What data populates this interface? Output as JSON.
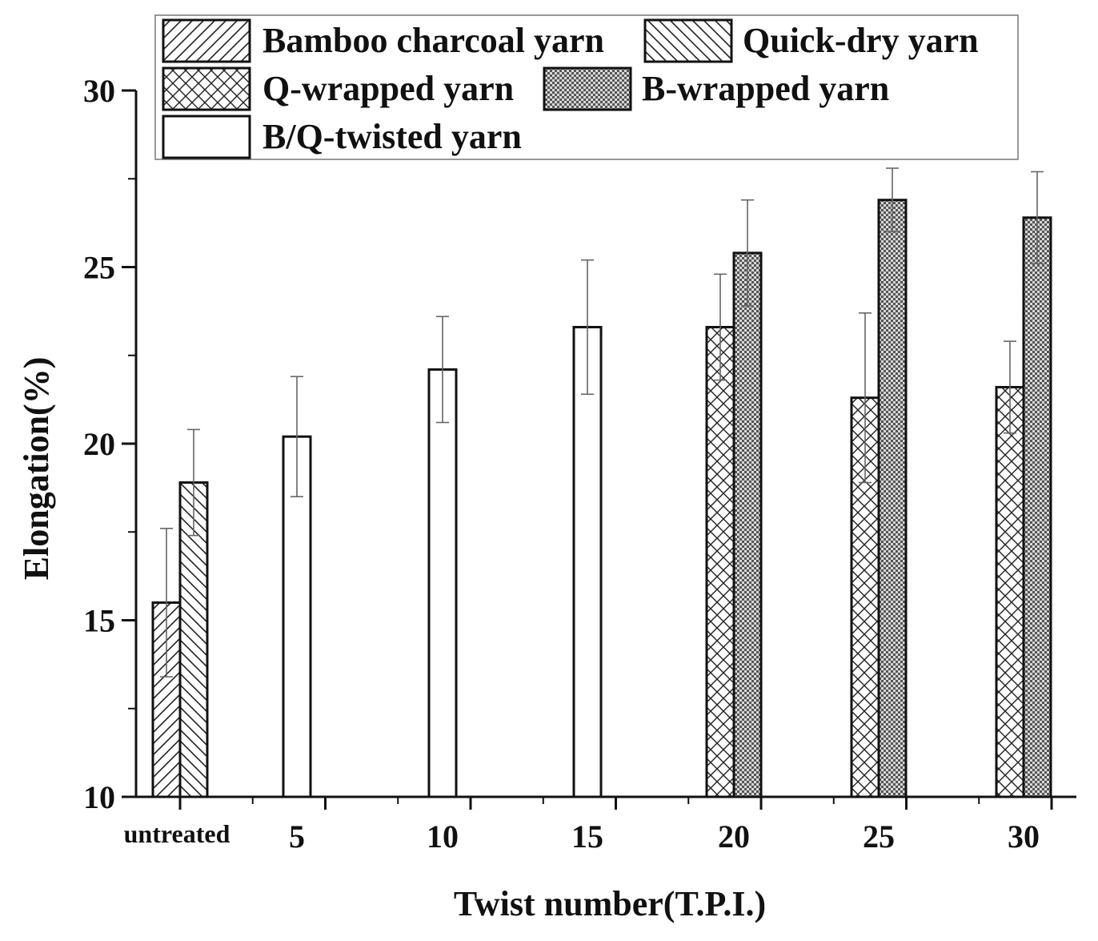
{
  "chart_data": {
    "type": "bar",
    "title": "",
    "xlabel": "Twist number(T.P.I.)",
    "ylabel": "Elongation(%)",
    "ylim": [
      10,
      30
    ],
    "yticks": [
      10,
      15,
      20,
      25,
      30
    ],
    "categories": [
      "untreated",
      "5",
      "10",
      "15",
      "20",
      "25",
      "30"
    ],
    "legend_position": "top",
    "series": [
      {
        "name": "Bamboo charcoal yarn",
        "pattern": "diag-right",
        "values": [
          15.5,
          null,
          null,
          null,
          null,
          null,
          null
        ],
        "errors": [
          2.1,
          null,
          null,
          null,
          null,
          null,
          null
        ]
      },
      {
        "name": "Quick-dry yarn",
        "pattern": "diag-left",
        "values": [
          18.9,
          null,
          null,
          null,
          null,
          null,
          null
        ],
        "errors": [
          1.5,
          null,
          null,
          null,
          null,
          null,
          null
        ]
      },
      {
        "name": "Q-wrapped yarn",
        "pattern": "crosshatch",
        "values": [
          null,
          null,
          null,
          null,
          23.3,
          21.3,
          21.6
        ],
        "errors": [
          null,
          null,
          null,
          null,
          1.5,
          2.4,
          1.3
        ]
      },
      {
        "name": "B-wrapped yarn",
        "pattern": "dense-dots",
        "values": [
          null,
          null,
          null,
          null,
          25.4,
          26.9,
          26.4
        ],
        "errors": [
          null,
          null,
          null,
          null,
          1.5,
          0.9,
          1.3
        ]
      },
      {
        "name": "B/Q-twisted yarn",
        "pattern": "none",
        "values": [
          null,
          20.2,
          22.1,
          23.3,
          null,
          null,
          null
        ],
        "errors": [
          null,
          1.7,
          1.5,
          1.9,
          null,
          null,
          null
        ]
      }
    ]
  }
}
